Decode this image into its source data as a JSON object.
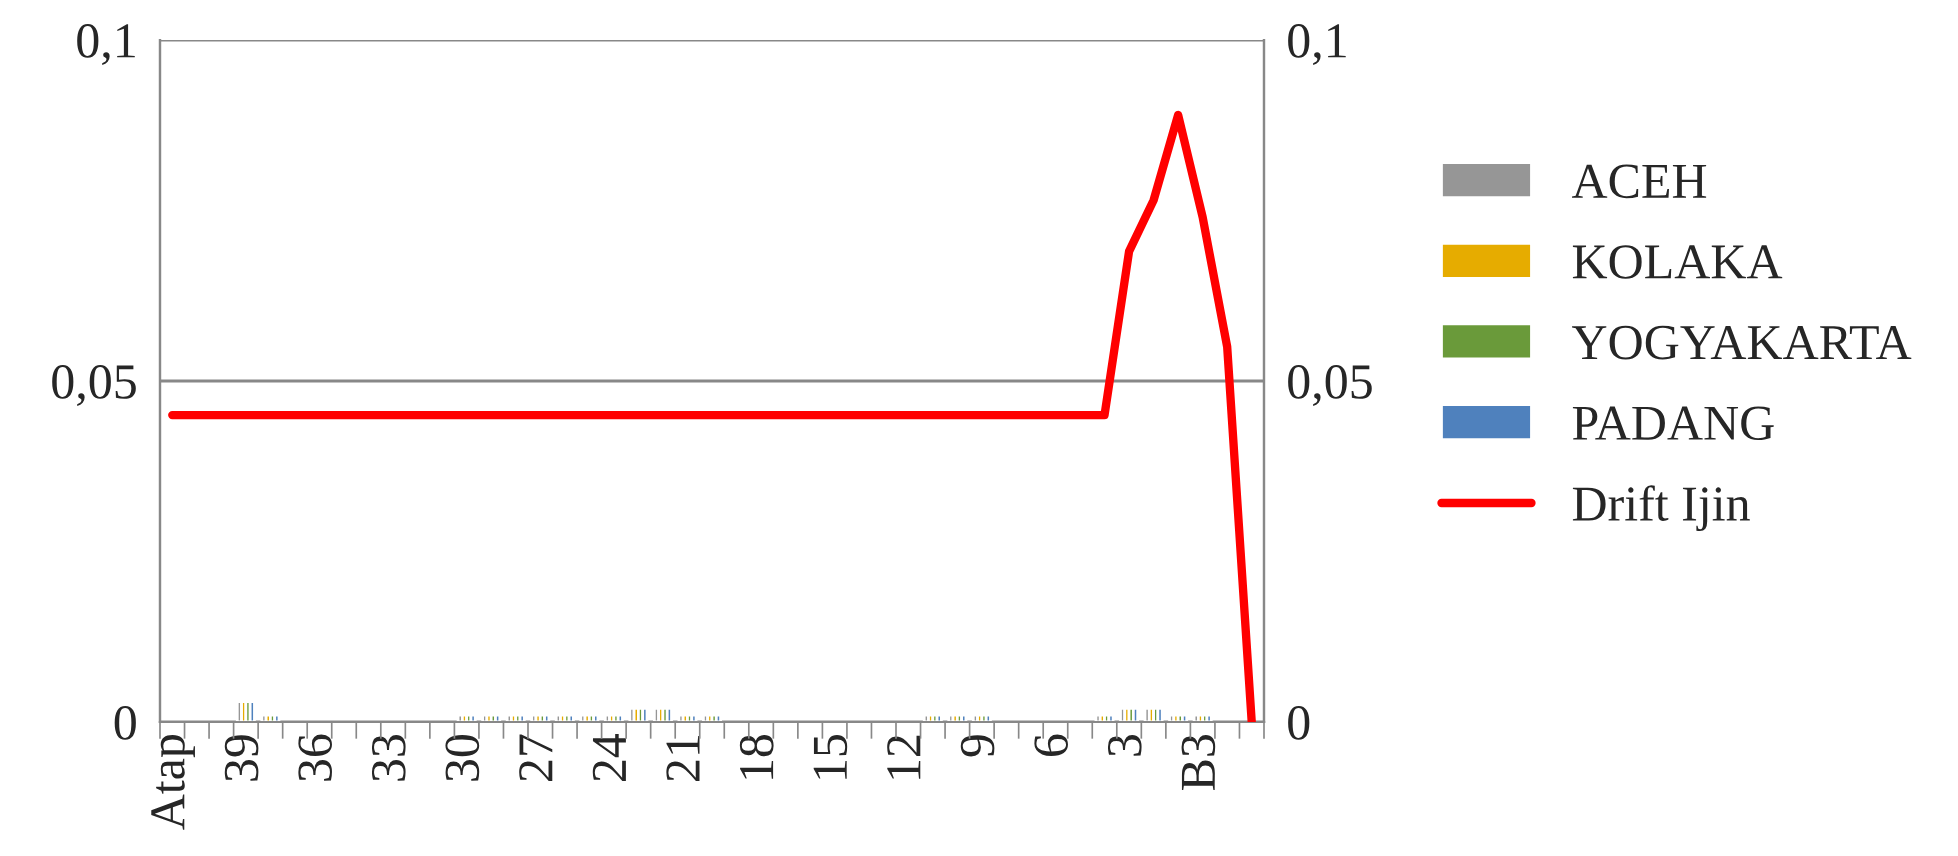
{
  "chart_data": {
    "type": "bar",
    "categories": [
      "Atap",
      null,
      null,
      "39",
      null,
      null,
      "36",
      null,
      null,
      "33",
      null,
      null,
      "30",
      null,
      null,
      "27",
      null,
      null,
      "24",
      null,
      null,
      "21",
      null,
      null,
      "18",
      null,
      null,
      "15",
      null,
      null,
      "12",
      null,
      null,
      "9",
      null,
      null,
      "6",
      null,
      null,
      "3",
      null,
      null,
      "B3",
      null,
      null
    ],
    "series": [
      {
        "name": "ACEH",
        "color": "#969696",
        "values": [
          null,
          null,
          null,
          0.003,
          0.001,
          null,
          null,
          null,
          null,
          null,
          null,
          null,
          0.001,
          0.001,
          0.001,
          0.001,
          0.001,
          0.001,
          0.001,
          0.002,
          0.002,
          0.001,
          0.001,
          null,
          null,
          null,
          null,
          null,
          null,
          null,
          null,
          0.001,
          0.001,
          0.001,
          null,
          null,
          null,
          null,
          0.001,
          0.002,
          0.002,
          0.001,
          0.001,
          null,
          null
        ]
      },
      {
        "name": "KOLAKA",
        "color": "#e6ac00",
        "values": [
          null,
          null,
          null,
          0.003,
          0.001,
          null,
          null,
          null,
          null,
          null,
          null,
          null,
          0.001,
          0.001,
          0.001,
          0.001,
          0.001,
          0.001,
          0.001,
          0.002,
          0.002,
          0.001,
          0.001,
          null,
          null,
          null,
          null,
          null,
          null,
          null,
          null,
          0.001,
          0.001,
          0.001,
          null,
          null,
          null,
          null,
          0.001,
          0.002,
          0.002,
          0.001,
          0.001,
          null,
          null
        ]
      },
      {
        "name": "YOGYAKARTA",
        "color": "#6a9a3a",
        "values": [
          null,
          null,
          null,
          0.003,
          0.001,
          null,
          null,
          null,
          null,
          null,
          null,
          null,
          0.001,
          0.001,
          0.001,
          0.001,
          0.001,
          0.001,
          0.001,
          0.002,
          0.002,
          0.001,
          0.001,
          null,
          null,
          null,
          null,
          null,
          null,
          null,
          null,
          0.001,
          0.001,
          0.001,
          null,
          null,
          null,
          null,
          0.001,
          0.002,
          0.002,
          0.001,
          0.001,
          null,
          null
        ]
      },
      {
        "name": "PADANG",
        "color": "#4f81bd",
        "values": [
          null,
          null,
          null,
          0.003,
          0.001,
          null,
          null,
          null,
          null,
          null,
          null,
          null,
          0.001,
          0.001,
          0.001,
          0.001,
          0.001,
          0.001,
          0.001,
          0.002,
          0.002,
          0.001,
          0.001,
          null,
          null,
          null,
          null,
          null,
          null,
          null,
          null,
          0.001,
          0.001,
          0.001,
          null,
          null,
          null,
          null,
          0.001,
          0.002,
          0.002,
          0.001,
          0.001,
          null,
          null
        ]
      },
      {
        "name": "Drift Ijin",
        "type": "line",
        "axis": "y2",
        "color": "#ff0000",
        "values": [
          0.045,
          0.045,
          0.045,
          0.045,
          0.045,
          0.045,
          0.045,
          0.045,
          0.045,
          0.045,
          0.045,
          0.045,
          0.045,
          0.045,
          0.045,
          0.045,
          0.045,
          0.045,
          0.045,
          0.045,
          0.045,
          0.045,
          0.045,
          0.045,
          0.045,
          0.045,
          0.045,
          0.045,
          0.045,
          0.045,
          0.045,
          0.045,
          0.045,
          0.045,
          0.045,
          0.045,
          0.045,
          0.045,
          0.045,
          0.069,
          0.0765,
          0.089,
          0.074,
          0.055,
          0
        ]
      }
    ],
    "ylim": [
      0,
      0.1
    ],
    "yticks": [
      0,
      {
        "value": 0.05,
        "label": "0,05"
      },
      {
        "value": 0.1,
        "label": "0,1"
      }
    ],
    "y2lim": [
      0,
      0.1
    ],
    "y2ticks": [
      0,
      {
        "value": 0.05,
        "label": "0,05"
      },
      {
        "value": 0.1,
        "label": "0,1"
      }
    ],
    "grid": "y",
    "legend": "right",
    "marker": "none",
    "line_style": "solid"
  }
}
